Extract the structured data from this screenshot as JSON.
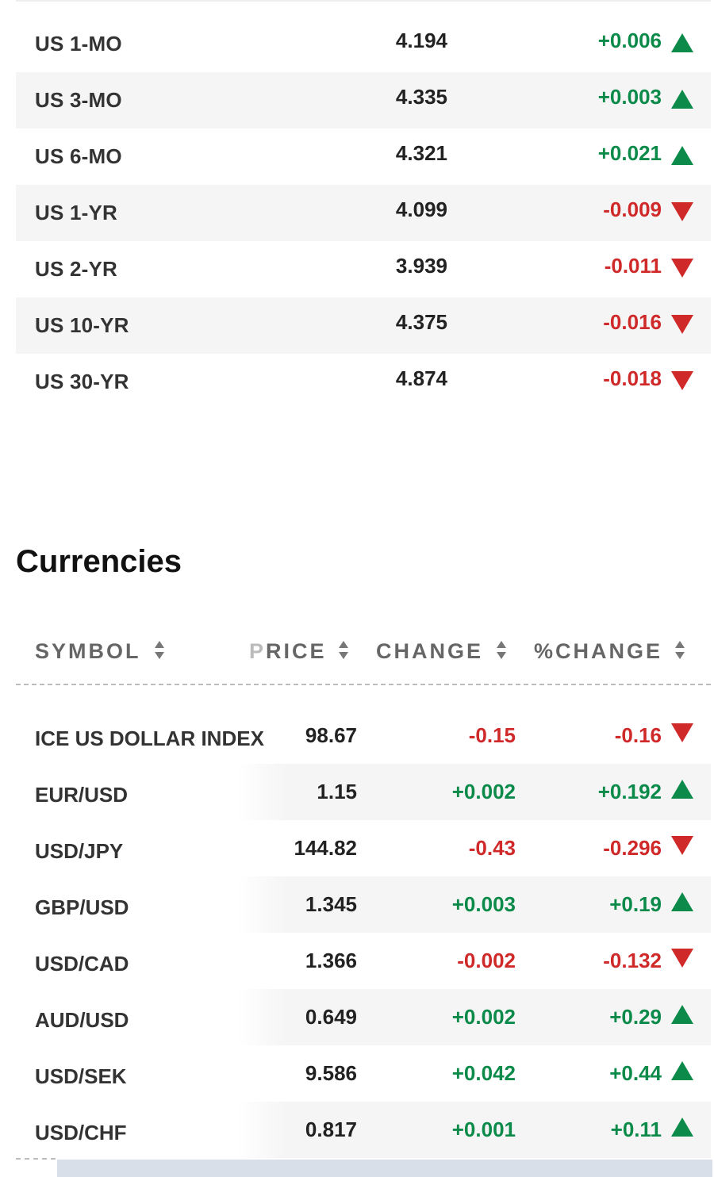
{
  "bonds": [
    {
      "name": "US 1-MO",
      "price": "4.194",
      "change": "+0.006",
      "direction": "up"
    },
    {
      "name": "US 3-MO",
      "price": "4.335",
      "change": "+0.003",
      "direction": "up"
    },
    {
      "name": "US 6-MO",
      "price": "4.321",
      "change": "+0.021",
      "direction": "up"
    },
    {
      "name": "US 1-YR",
      "price": "4.099",
      "change": "-0.009",
      "direction": "down"
    },
    {
      "name": "US 2-YR",
      "price": "3.939",
      "change": "-0.011",
      "direction": "down"
    },
    {
      "name": "US 10-YR",
      "price": "4.375",
      "change": "-0.016",
      "direction": "down"
    },
    {
      "name": "US 30-YR",
      "price": "4.874",
      "change": "-0.018",
      "direction": "down"
    }
  ],
  "currencies": {
    "title": "Currencies",
    "headers": {
      "symbol": "SYMBOL",
      "price": "PRICE",
      "change": "CHANGE",
      "pct_change": "%CHANGE"
    },
    "rows": [
      {
        "symbol": "ICE US DOLLAR INDEX",
        "price": "98.67",
        "change": "-0.15",
        "pct_change": "-0.16",
        "direction": "down"
      },
      {
        "symbol": "EUR/USD",
        "price": "1.15",
        "change": "+0.002",
        "pct_change": "+0.192",
        "direction": "up"
      },
      {
        "symbol": "USD/JPY",
        "price": "144.82",
        "change": "-0.43",
        "pct_change": "-0.296",
        "direction": "down"
      },
      {
        "symbol": "GBP/USD",
        "price": "1.345",
        "change": "+0.003",
        "pct_change": "+0.19",
        "direction": "up"
      },
      {
        "symbol": "USD/CAD",
        "price": "1.366",
        "change": "-0.002",
        "pct_change": "-0.132",
        "direction": "down"
      },
      {
        "symbol": "AUD/USD",
        "price": "0.649",
        "change": "+0.002",
        "pct_change": "+0.29",
        "direction": "up"
      },
      {
        "symbol": "USD/SEK",
        "price": "9.586",
        "change": "+0.042",
        "pct_change": "+0.44",
        "direction": "up"
      },
      {
        "symbol": "USD/CHF",
        "price": "0.817",
        "change": "+0.001",
        "pct_change": "+0.11",
        "direction": "up"
      }
    ]
  },
  "colors": {
    "positive": "#0b8a4a",
    "negative": "#d02929",
    "row_alt_bg": "#f5f5f5"
  },
  "icons": {
    "up": "arrow-up-icon",
    "down": "arrow-down-icon",
    "sort": "sort-icon"
  }
}
